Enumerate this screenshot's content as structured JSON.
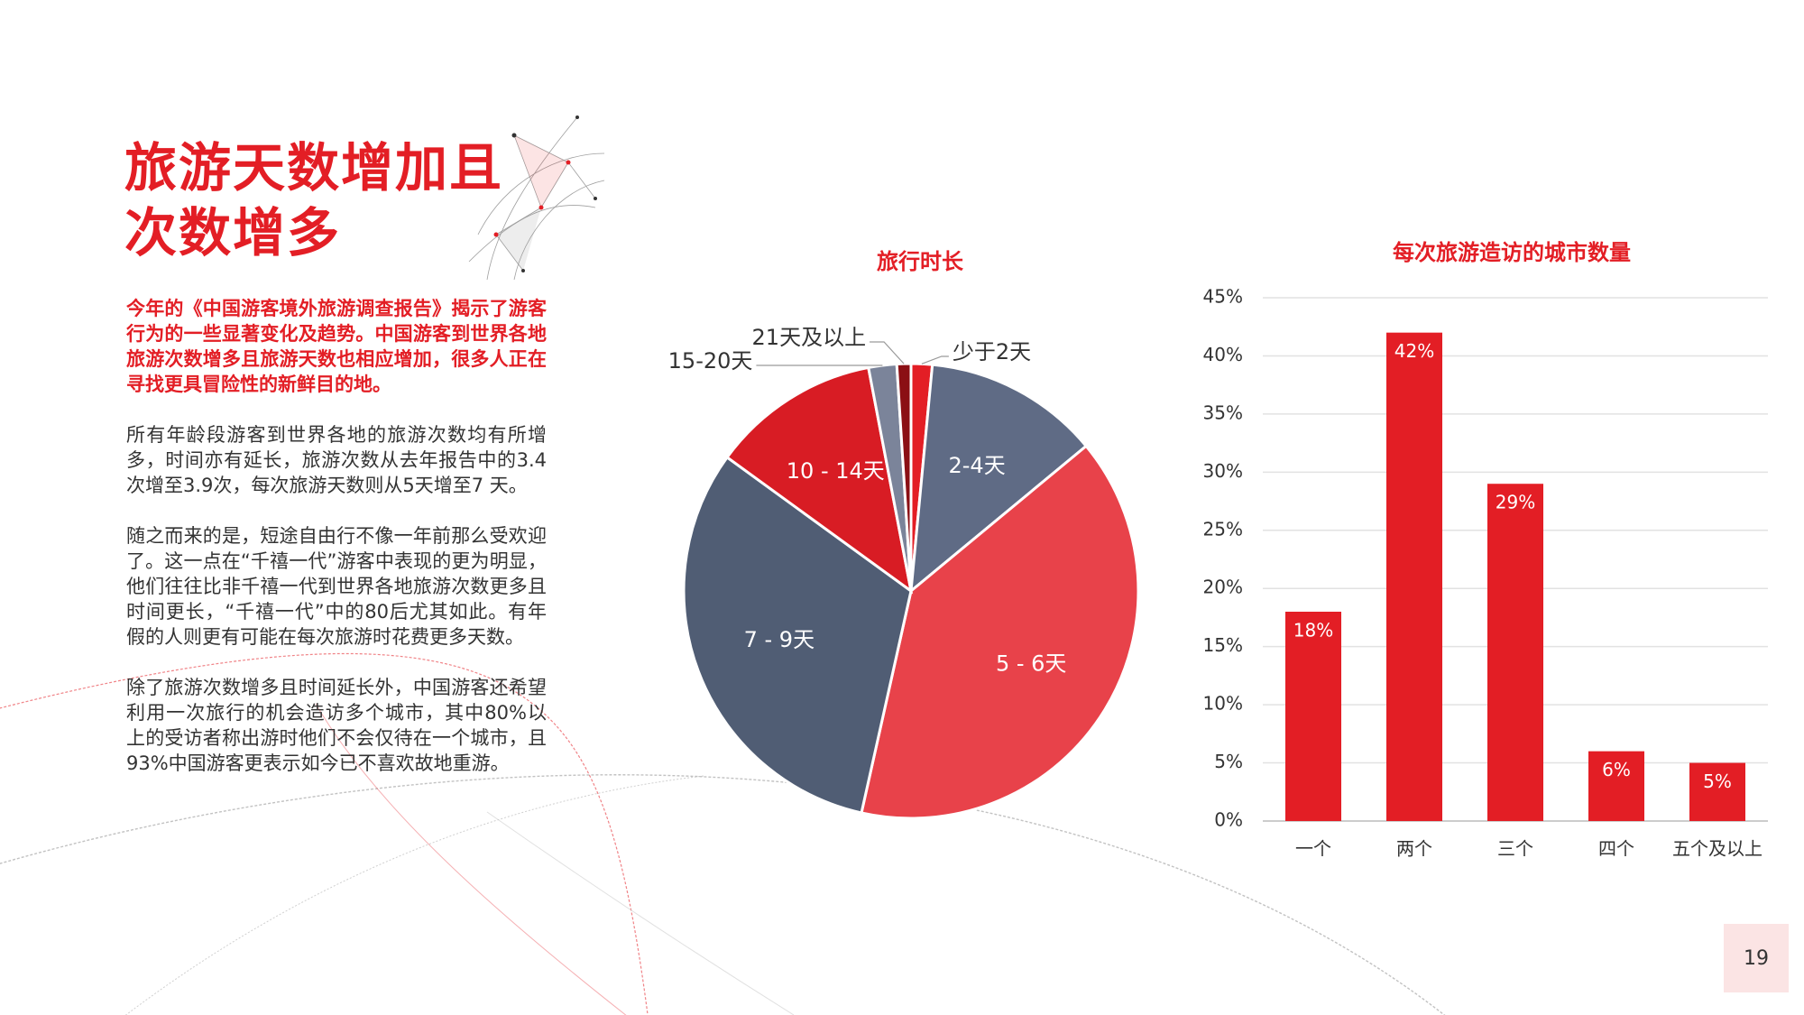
{
  "title": {
    "line1": "旅游天数增加且",
    "line2": "次数增多"
  },
  "paragraphs": {
    "intro": "今年的《中国游客境外旅游调查报告》揭示了游客行为的一些显著变化及趋势。中国游客到世界各地旅游次数增多且旅游天数也相应增加，很多人正在寻找更具冒险性的新鲜目的地。",
    "p2": "所有年龄段游客到世界各地的旅游次数均有所增多，时间亦有延长，旅游次数从去年报告中的3.4次增至3.9次，每次旅游天数则从5天增至7 天。",
    "p3": "随之而来的是，短途自由行不像一年前那么受欢迎了。这一点在“千禧一代”游客中表现的更为明显，他们往往比非千禧一代到世界各地旅游次数更多且时间更长，“千禧一代”中的80后尤其如此。有年假的人则更有可能在每次旅游时花费更多天数。",
    "p4": "除了旅游次数增多且时间延长外，中国游客还希望利用一次旅行的机会造访多个城市，其中80%以上的受访者称出游时他们不会仅待在一个城市，且93%中国游客更表示如今已不喜欢故地重游。"
  },
  "page_number": "19",
  "chart_data": [
    {
      "type": "pie",
      "title": "旅行时长",
      "start_angle_deg": 0,
      "slices": [
        {
          "label": "少于2天",
          "value": 1.5,
          "color": "#e31e25"
        },
        {
          "label": "2-4天",
          "value": 12.5,
          "color": "#5f6b85"
        },
        {
          "label": "5 - 6天",
          "value": 39.5,
          "color": "#e8424a"
        },
        {
          "label": "7 - 9天",
          "value": 31.5,
          "color": "#505d74"
        },
        {
          "label": "10 - 14天",
          "value": 12,
          "color": "#d81c24"
        },
        {
          "label": "15-20天",
          "value": 2,
          "color": "#7b849a"
        },
        {
          "label": "21天及以上",
          "value": 1,
          "color": "#8b0f14"
        }
      ]
    },
    {
      "type": "bar",
      "title": "每次旅游造访的城市数量",
      "categories": [
        "一个",
        "两个",
        "三个",
        "四个",
        "五个及以上"
      ],
      "values": [
        18,
        42,
        29,
        6,
        5
      ],
      "value_labels": [
        "18%",
        "42%",
        "29%",
        "6%",
        "5%"
      ],
      "yticks": [
        "0%",
        "5%",
        "10%",
        "15%",
        "20%",
        "25%",
        "30%",
        "35%",
        "40%",
        "45%"
      ],
      "ylim": [
        0,
        45
      ],
      "grid": true,
      "bar_color": "#e31e25"
    }
  ]
}
